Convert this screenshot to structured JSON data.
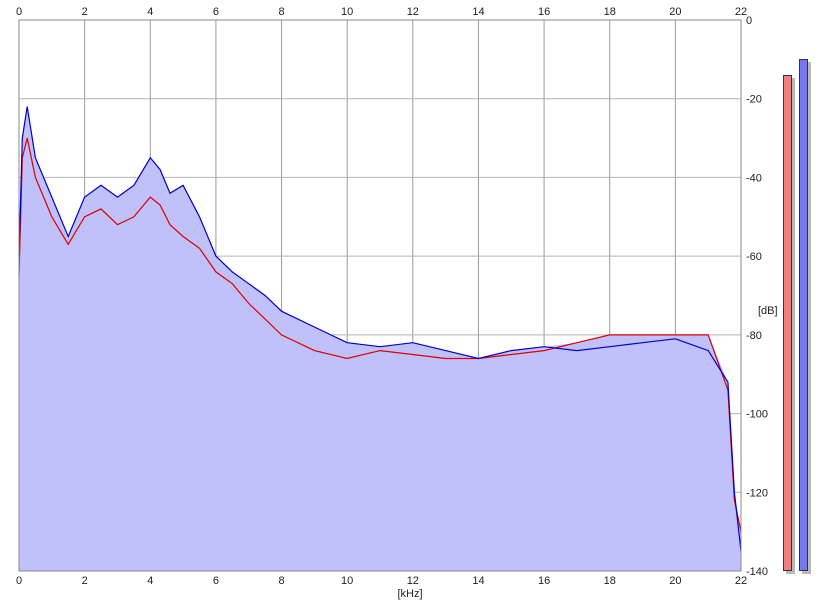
{
  "chart_data": {
    "type": "line",
    "xlabel": "[kHz]",
    "ylabel": "[dB]",
    "xlim": [
      0,
      22
    ],
    "ylim": [
      -140,
      0
    ],
    "xticks": [
      "0",
      "2",
      "4",
      "6",
      "8",
      "10",
      "12",
      "14",
      "16",
      "18",
      "20",
      "22"
    ],
    "yticks": [
      "0",
      "-20",
      "-40",
      "-60",
      "-80",
      "-100",
      "-120",
      "-140"
    ],
    "grid": true,
    "fill_color": "#c0c0fa",
    "series": [
      {
        "color": "#0000c8",
        "x": [
          0,
          0.1,
          0.25,
          0.5,
          1.0,
          1.5,
          2.0,
          2.5,
          3.0,
          3.5,
          4.0,
          4.3,
          4.6,
          5.0,
          5.5,
          6.0,
          6.5,
          7.0,
          7.5,
          8.0,
          9.0,
          10.0,
          11.0,
          12.0,
          13.0,
          14.0,
          15.0,
          16.0,
          17.0,
          18.0,
          19.0,
          20.0,
          21.0,
          21.6,
          21.8,
          22.0
        ],
        "y": [
          -60,
          -30,
          -22,
          -35,
          -45,
          -55,
          -45,
          -42,
          -45,
          -42,
          -35,
          -38,
          -44,
          -42,
          -50,
          -60,
          -64,
          -67,
          -70,
          -74,
          -78,
          -82,
          -83,
          -82,
          -84,
          -86,
          -84,
          -83,
          -84,
          -83,
          -82,
          -81,
          -84,
          -92,
          -120,
          -135
        ]
      },
      {
        "color": "#dc0000",
        "x": [
          0,
          0.1,
          0.25,
          0.5,
          1.0,
          1.5,
          2.0,
          2.5,
          3.0,
          3.5,
          4.0,
          4.3,
          4.6,
          5.0,
          5.5,
          6.0,
          6.5,
          7.0,
          7.5,
          8.0,
          9.0,
          10.0,
          11.0,
          12.0,
          13.0,
          14.0,
          15.0,
          16.0,
          17.0,
          18.0,
          19.0,
          20.0,
          21.0,
          21.6,
          21.8,
          22.0
        ],
        "y": [
          -65,
          -35,
          -30,
          -40,
          -50,
          -57,
          -50,
          -48,
          -52,
          -50,
          -45,
          -47,
          -52,
          -55,
          -58,
          -64,
          -67,
          -72,
          -76,
          -80,
          -84,
          -86,
          -84,
          -85,
          -86,
          -86,
          -85,
          -84,
          -82,
          -80,
          -80,
          -80,
          -80,
          -94,
          -122,
          -130
        ]
      }
    ]
  },
  "level_meters": [
    {
      "color": "#f08080",
      "level": 0.9
    },
    {
      "color": "#7878f0",
      "level": 0.93
    }
  ]
}
